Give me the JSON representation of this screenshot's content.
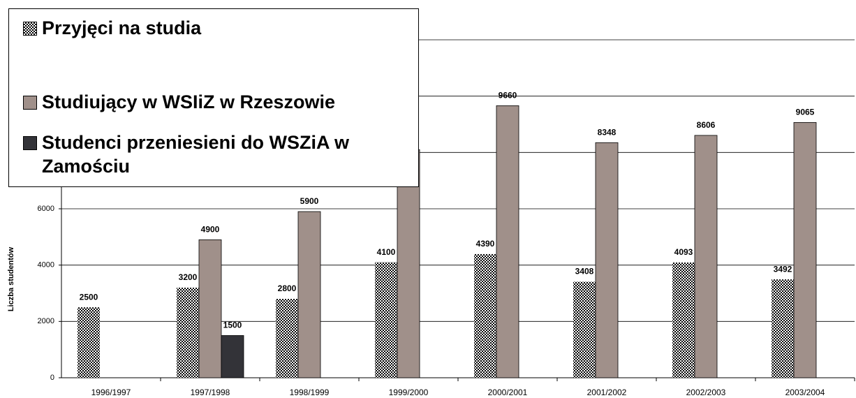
{
  "chart_data": {
    "type": "bar",
    "y_label": "Liczba studentów",
    "categories": [
      "1996/1997",
      "1997/1998",
      "1998/1999",
      "1999/2000",
      "2000/2001",
      "2001/2002",
      "2002/2003",
      "2003/2004"
    ],
    "series": [
      {
        "name": "Przyjęci na studia",
        "color": "#000000",
        "pattern": "checker",
        "values": [
          2500,
          3200,
          2800,
          4100,
          4390,
          3408,
          4093,
          3492
        ]
      },
      {
        "name": "Studiujący w WSIiZ w Rzeszowie",
        "color": "#a0908a",
        "values": [
          null,
          4900,
          5900,
          8100,
          9660,
          8348,
          8606,
          9065
        ]
      },
      {
        "name": "Studenci przeniesieni do WSZiA w Zamościu",
        "color": "#333338",
        "values": [
          null,
          1500,
          null,
          null,
          null,
          null,
          null,
          null
        ]
      }
    ],
    "ylim": [
      0,
      12000
    ],
    "yticks": [
      0,
      2000,
      4000,
      6000,
      8000,
      10000,
      12000
    ],
    "grid": true,
    "legend": "top-left"
  }
}
